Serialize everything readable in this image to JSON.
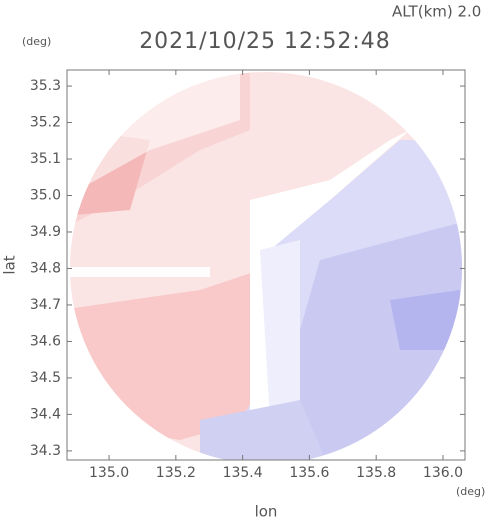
{
  "chart_data": {
    "type": "image",
    "title": "2021/10/25 12:52:48",
    "subtitle": "ALT(km) 2.0",
    "x_label": "lon",
    "y_label": "lat",
    "x_unit": "(deg)",
    "y_unit": "(deg)",
    "xlim": [
      134.874,
      136.066
    ],
    "ylim": [
      34.275,
      35.344
    ],
    "xticks": [
      {
        "value": 135.0,
        "label": "135.0"
      },
      135.2,
      135.4,
      135.6,
      135.8,
      {
        "value": 136.0,
        "label": "136.0"
      }
    ],
    "yticks": [
      34.3,
      34.4,
      34.5,
      34.6,
      34.7,
      34.8,
      34.9,
      {
        "value": 35.0,
        "label": "35.0"
      },
      35.1,
      35.2,
      35.3
    ]
  }
}
